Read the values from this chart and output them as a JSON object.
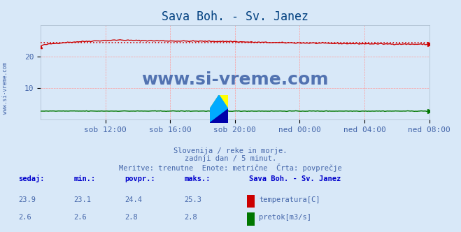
{
  "title": "Sava Boh. - Sv. Janez",
  "title_color": "#003f7f",
  "bg_color": "#d8e8f8",
  "plot_bg_color": "#d8e8f8",
  "grid_color": "#ff9999",
  "ylim": [
    0,
    30
  ],
  "yticks": [
    10,
    20
  ],
  "xlim": [
    0,
    288
  ],
  "xtick_labels": [
    "sob 12:00",
    "sob 16:00",
    "sob 20:00",
    "ned 00:00",
    "ned 04:00",
    "ned 08:00"
  ],
  "xtick_positions": [
    48,
    96,
    144,
    192,
    240,
    288
  ],
  "temp_color": "#cc0000",
  "flow_color": "#007700",
  "temp_avg": 24.4,
  "flow_avg": 2.8,
  "temp_min": 23.1,
  "temp_max": 25.3,
  "flow_min": 2.6,
  "flow_max": 2.8,
  "temp_now": 23.9,
  "flow_now": 2.6,
  "text_lines": [
    "Slovenija / reke in morje.",
    "zadnji dan / 5 minut.",
    "Meritve: trenutne  Enote: metrične  Črta: povprečje"
  ],
  "text_color": "#4466aa",
  "header_color": "#0000cc",
  "watermark": "www.si-vreme.com",
  "watermark_color": "#4466aa",
  "station_label": "Sava Boh. - Sv. Janez",
  "temp_label": "temperatura[C]",
  "flow_label": "pretok[m3/s]"
}
